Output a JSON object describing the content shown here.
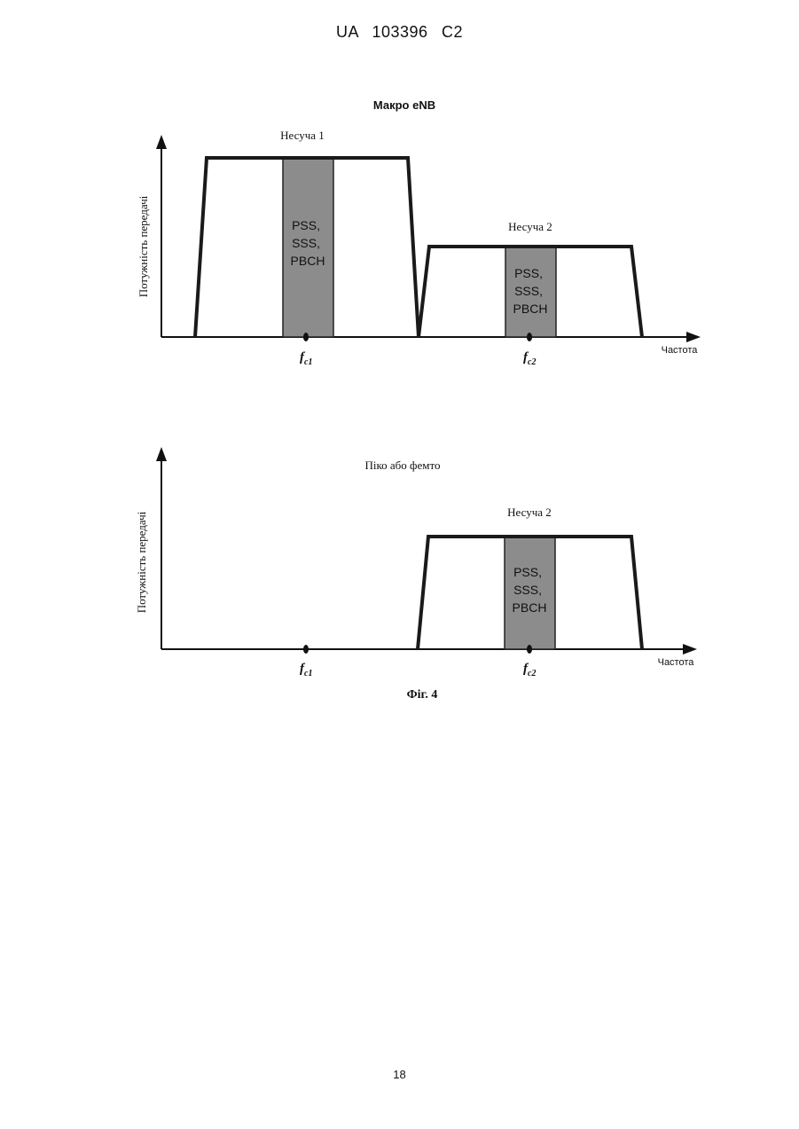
{
  "header": {
    "doc_number": "UA   103396   C2"
  },
  "figure_caption": "Фіг. 4",
  "page_number": "18",
  "colors": {
    "signal_line": "#1a1a1a",
    "shaded_band": "#8c8c8c",
    "axis": "#111111"
  },
  "chart_data": [
    {
      "type": "area",
      "title": "Макро eNB",
      "ylabel": "Потужність передачі",
      "xlabel": "Частота",
      "x_ticks": [
        {
          "label": "f",
          "sub": "c1"
        },
        {
          "label": "f",
          "sub": "c2"
        }
      ],
      "carriers": [
        {
          "name": "Несуча 1",
          "relative_power": 1.0,
          "center": "fc1",
          "band_label": [
            "PSS,",
            "SSS,",
            "PBCH"
          ]
        },
        {
          "name": "Несуча 2",
          "relative_power": 0.5,
          "center": "fc2",
          "band_label": [
            "PSS,",
            "SSS,",
            "PBCH"
          ]
        }
      ]
    },
    {
      "type": "area",
      "title": "Піко або фемто",
      "ylabel": "Потужність передачі",
      "xlabel": "Частота",
      "x_ticks": [
        {
          "label": "f",
          "sub": "c1"
        },
        {
          "label": "f",
          "sub": "c2"
        }
      ],
      "carriers": [
        {
          "name": "Несуча 2",
          "relative_power": 1.0,
          "center": "fc2",
          "band_label": [
            "PSS,",
            "SSS,",
            "PBCH"
          ]
        }
      ]
    }
  ]
}
